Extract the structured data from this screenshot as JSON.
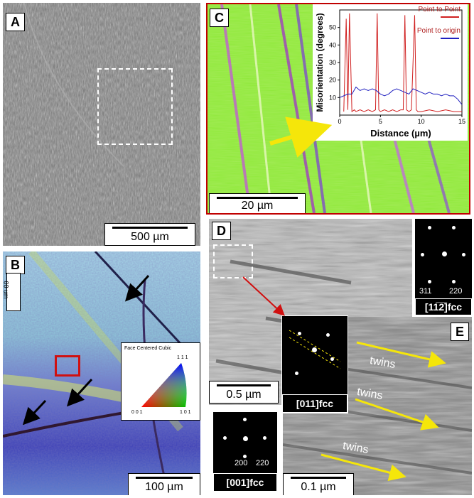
{
  "panels": {
    "A": {
      "label": "A",
      "scale": "500 µm"
    },
    "B": {
      "label": "B",
      "scale": "100 µm",
      "scale_vertical": "00 um",
      "legend_title": "Face Centered Cubic",
      "pole_top": "1 1 1",
      "pole_left": "0 0 1",
      "pole_right": "1 0 1"
    },
    "C": {
      "label": "C",
      "scale": "20 µm"
    },
    "D": {
      "label": "D",
      "scale": "0.5 µm"
    },
    "E": {
      "label": "E",
      "scale": "0.1 µm",
      "twins": [
        "twins",
        "twins",
        "twins"
      ]
    }
  },
  "saed": {
    "top_right": {
      "zone": "[11̅2̅]fcc",
      "idx1": "311",
      "idx2": "220"
    },
    "middle": {
      "zone": "[011]fcc"
    },
    "bottom": {
      "zone": "[001]fcc",
      "idx1": "200",
      "idx2": "220"
    }
  },
  "colors": {
    "panel_c_border": "#c00000",
    "arrow_yellow": "#f5e60a",
    "p2p": "#d02020",
    "p2o": "#2020c0"
  },
  "chart_data": {
    "type": "line",
    "xlabel": "Distance (µm)",
    "ylabel": "Misorientation (degrees)",
    "xlim": [
      0,
      15
    ],
    "ylim": [
      0,
      60
    ],
    "xticks": [
      0,
      5,
      10,
      15
    ],
    "yticks": [
      10,
      20,
      30,
      40,
      50
    ],
    "series": [
      {
        "name": "Point to Point",
        "color": "#d02020",
        "x": [
          0.5,
          0.8,
          1.0,
          1.2,
          1.5,
          1.8,
          2.0,
          2.5,
          3.0,
          3.5,
          4.0,
          4.4,
          4.6,
          4.8,
          5.0,
          5.5,
          6,
          6.5,
          7,
          7.5,
          7.8,
          8.0,
          8.2,
          8.5,
          8.8,
          9.2,
          9.4,
          9.6,
          10,
          11,
          12,
          13,
          14,
          15
        ],
        "values": [
          2,
          55,
          3,
          58,
          2,
          3,
          2,
          3,
          2,
          3,
          2,
          3,
          58,
          3,
          2,
          3,
          2,
          3,
          2,
          3,
          3,
          57,
          3,
          2,
          3,
          57,
          3,
          2,
          2,
          3,
          2,
          3,
          2,
          2
        ]
      },
      {
        "name": "Point to origin",
        "color": "#2020c0",
        "x": [
          0,
          0.5,
          1,
          1.5,
          2,
          2.5,
          3,
          3.5,
          4,
          4.5,
          5,
          5.5,
          6,
          6.5,
          7,
          7.5,
          8,
          8.5,
          9,
          9.5,
          10,
          10.5,
          11,
          11.5,
          12,
          12.5,
          13,
          13.5,
          14,
          14.5,
          15
        ],
        "values": [
          10,
          11,
          12,
          12,
          16,
          14,
          15,
          14,
          15,
          14,
          12,
          11,
          12,
          14,
          15,
          14,
          13,
          12,
          15,
          14,
          13,
          12,
          13,
          12,
          12,
          11,
          12,
          11,
          11,
          9,
          6
        ]
      }
    ]
  }
}
